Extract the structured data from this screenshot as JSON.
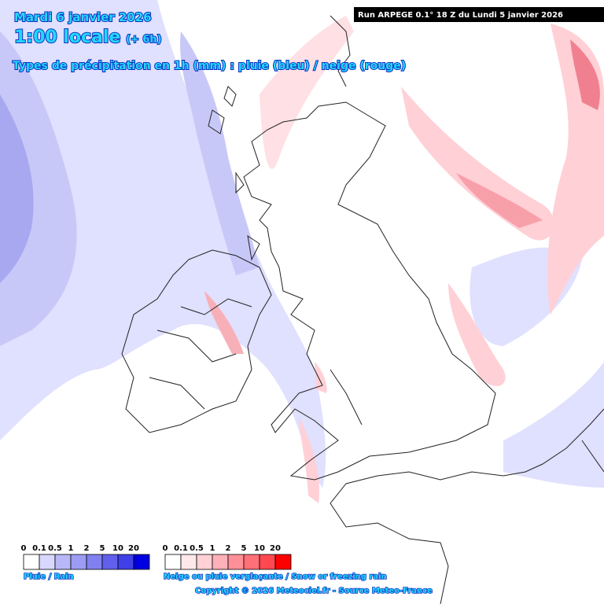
{
  "header": {
    "date": "Mardi 6 janvier 2026",
    "time": "1:00 locale",
    "offset": "(+ 6h)",
    "subtitle": "Types de précipitation en 1h (mm) : pluie (bleu) / neige (rouge)",
    "run": "Run ARPEGE 0.1° 18 Z du Lundi 5 janvier 2026"
  },
  "legend": {
    "rain": {
      "labels": [
        "0",
        "0.1",
        "0.5",
        "1",
        "2",
        "5",
        "10",
        "20"
      ],
      "caption": "Pluie / Rain"
    },
    "snow": {
      "labels": [
        "0",
        "0.1",
        "0.5",
        "1",
        "2",
        "5",
        "10",
        "20"
      ],
      "caption": "Neige ou pluie verglaçante / Snow or freezing rain"
    }
  },
  "copyright": "Copyright © 2026 Meteociel.fr - Source Meteo-France"
}
